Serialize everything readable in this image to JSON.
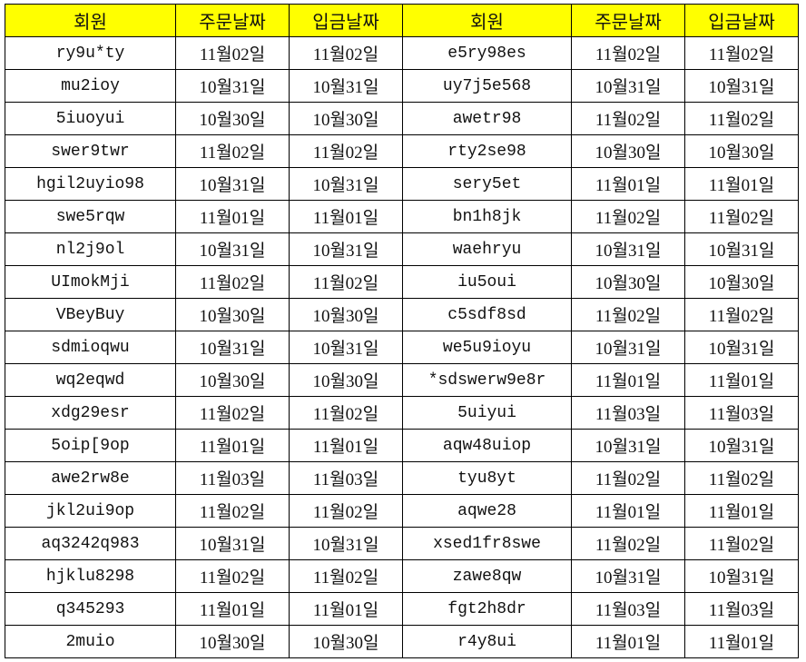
{
  "headers": [
    "회원",
    "주문날짜",
    "입금날짜",
    "회원",
    "주문날짜",
    "입금날짜"
  ],
  "header_color": "#ffff00",
  "rows": [
    [
      "ry9u*ty",
      "11월02일",
      "11월02일",
      "e5ry98es",
      "11월02일",
      "11월02일"
    ],
    [
      "mu2ioy",
      "10월31일",
      "10월31일",
      "uy7j5e568",
      "10월31일",
      "10월31일"
    ],
    [
      "5iuoyui",
      "10월30일",
      "10월30일",
      "awetr98",
      "11월02일",
      "11월02일"
    ],
    [
      "swer9twr",
      "11월02일",
      "11월02일",
      "rty2se98",
      "10월30일",
      "10월30일"
    ],
    [
      "hgil2uyio98",
      "10월31일",
      "10월31일",
      "sery5et",
      "11월01일",
      "11월01일"
    ],
    [
      "swe5rqw",
      "11월01일",
      "11월01일",
      "bn1h8jk",
      "11월02일",
      "11월02일"
    ],
    [
      "nl2j9ol",
      "10월31일",
      "10월31일",
      "waehryu",
      "10월31일",
      "10월31일"
    ],
    [
      "UImokMji",
      "11월02일",
      "11월02일",
      "iu5oui",
      "10월30일",
      "10월30일"
    ],
    [
      "VBeyBuy",
      "10월30일",
      "10월30일",
      "c5sdf8sd",
      "11월02일",
      "11월02일"
    ],
    [
      "sdmioqwu",
      "10월31일",
      "10월31일",
      "we5u9ioyu",
      "10월31일",
      "10월31일"
    ],
    [
      "wq2eqwd",
      "10월30일",
      "10월30일",
      "*sdswerw9e8r",
      "11월01일",
      "11월01일"
    ],
    [
      "xdg29esr",
      "11월02일",
      "11월02일",
      "5uiyui",
      "11월03일",
      "11월03일"
    ],
    [
      "5oip[9op",
      "11월01일",
      "11월01일",
      "aqw48uiop",
      "10월31일",
      "10월31일"
    ],
    [
      "awe2rw8e",
      "11월03일",
      "11월03일",
      "tyu8yt",
      "11월02일",
      "11월02일"
    ],
    [
      "jkl2ui9op",
      "11월02일",
      "11월02일",
      "aqwe28",
      "11월01일",
      "11월01일"
    ],
    [
      "aq3242q983",
      "10월31일",
      "10월31일",
      "xsed1fr8swe",
      "11월02일",
      "11월02일"
    ],
    [
      "hjklu8298",
      "11월02일",
      "11월02일",
      "zawe8qw",
      "10월31일",
      "10월31일"
    ],
    [
      "q345293",
      "11월01일",
      "11월01일",
      "fgt2h8dr",
      "11월03일",
      "11월03일"
    ],
    [
      "2muio",
      "10월30일",
      "10월30일",
      "r4y8ui",
      "11월01일",
      "11월01일"
    ]
  ]
}
